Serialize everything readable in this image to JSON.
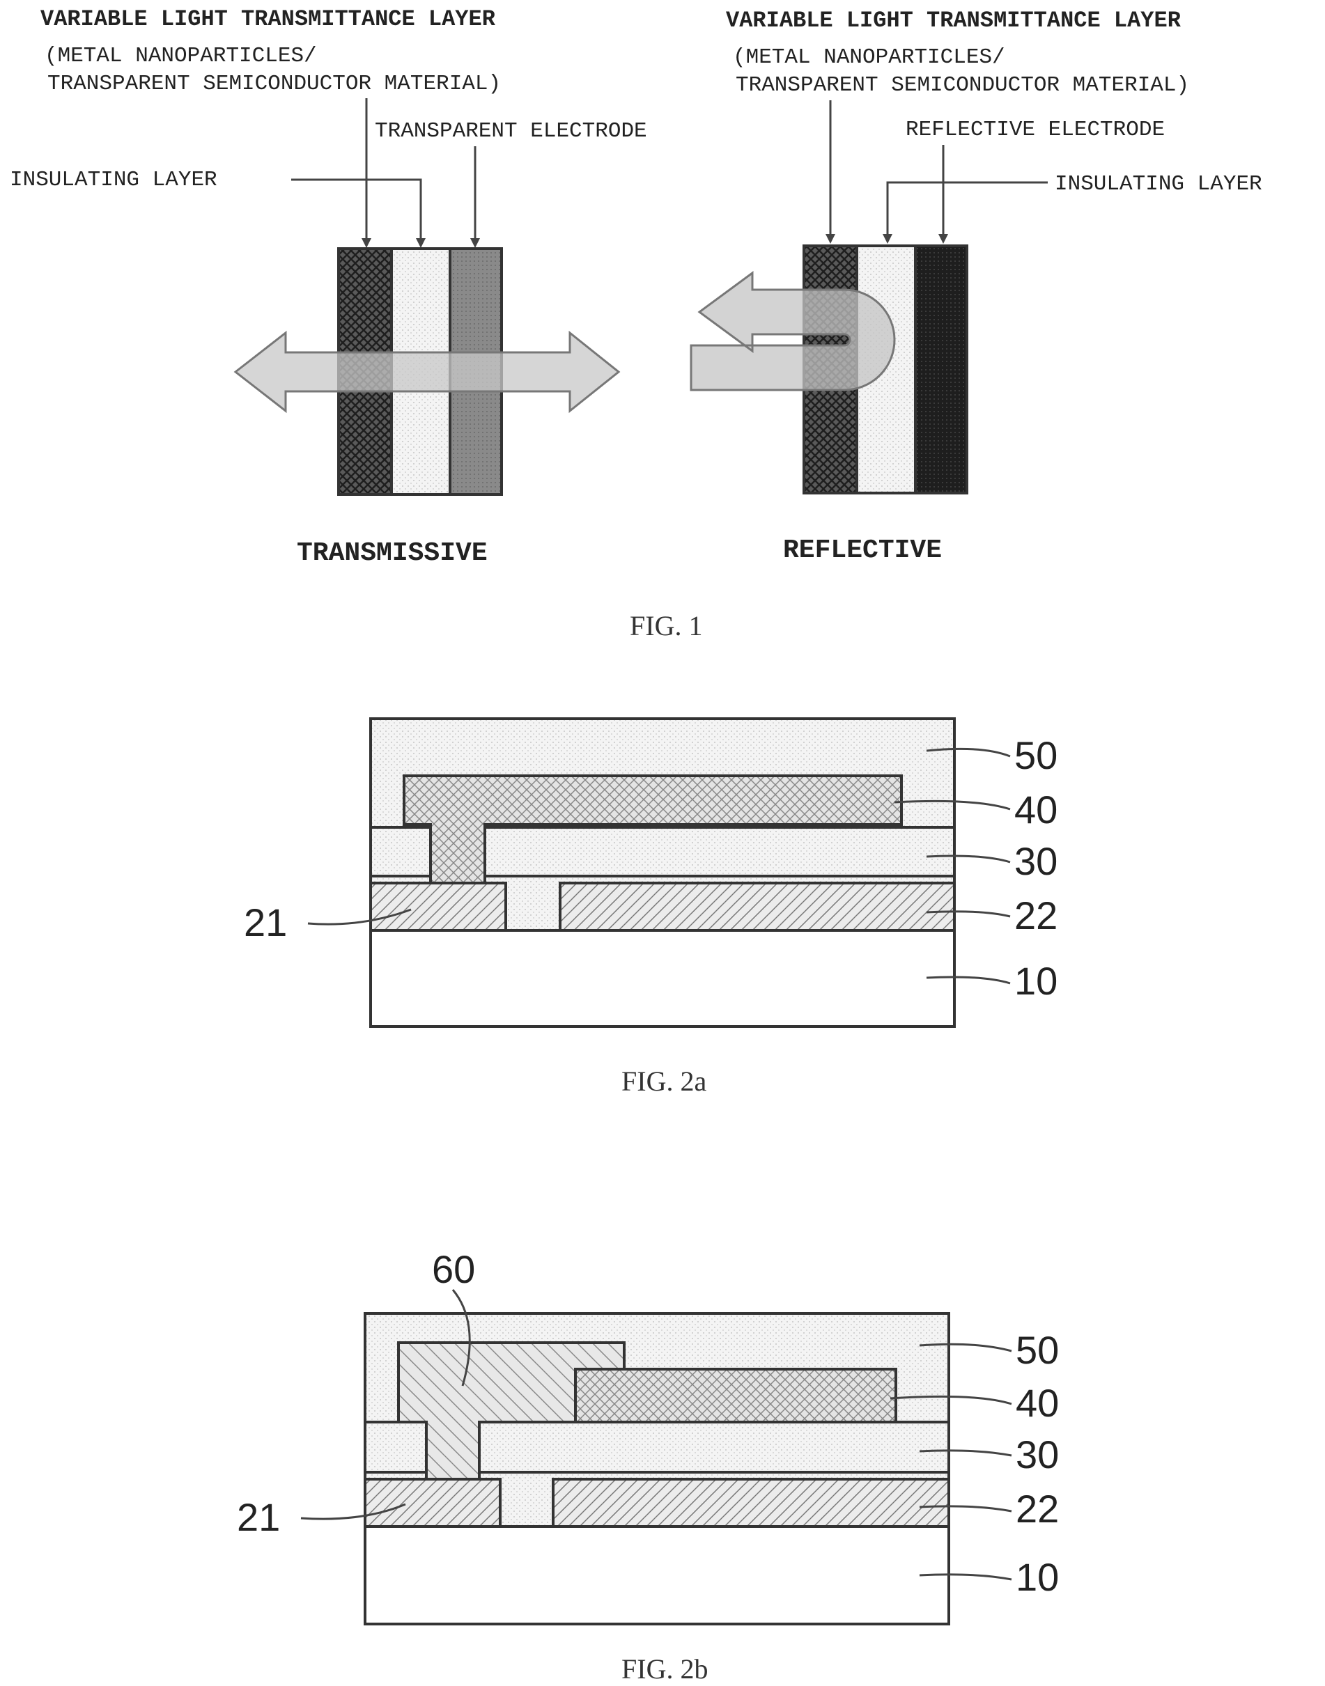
{
  "fig1": {
    "left_panel": {
      "layer_title": "VARIABLE LIGHT TRANSMITTANCE LAYER",
      "layer_sub1": "(METAL NANOPARTICLES/",
      "layer_sub2": "TRANSPARENT SEMICONDUCTOR MATERIAL)",
      "electrode_label": "TRANSPARENT ELECTRODE",
      "insulating_label": "INSULATING LAYER",
      "mode_label": "TRANSMISSIVE"
    },
    "right_panel": {
      "layer_title": "VARIABLE LIGHT TRANSMITTANCE LAYER",
      "layer_sub1": "(METAL NANOPARTICLES/",
      "layer_sub2": "TRANSPARENT SEMICONDUCTOR MATERIAL)",
      "electrode_label": "REFLECTIVE ELECTRODE",
      "insulating_label": "INSULATING LAYER",
      "mode_label": "REFLECTIVE"
    },
    "caption": "FIG. 1"
  },
  "fig2a": {
    "refs": {
      "r50": "50",
      "r40": "40",
      "r30": "30",
      "r22": "22",
      "r21": "21",
      "r10": "10"
    },
    "caption": "FIG. 2a"
  },
  "fig2b": {
    "refs": {
      "r60": "60",
      "r50": "50",
      "r40": "40",
      "r30": "30",
      "r22": "22",
      "r21": "21",
      "r10": "10"
    },
    "caption": "FIG. 2b"
  }
}
